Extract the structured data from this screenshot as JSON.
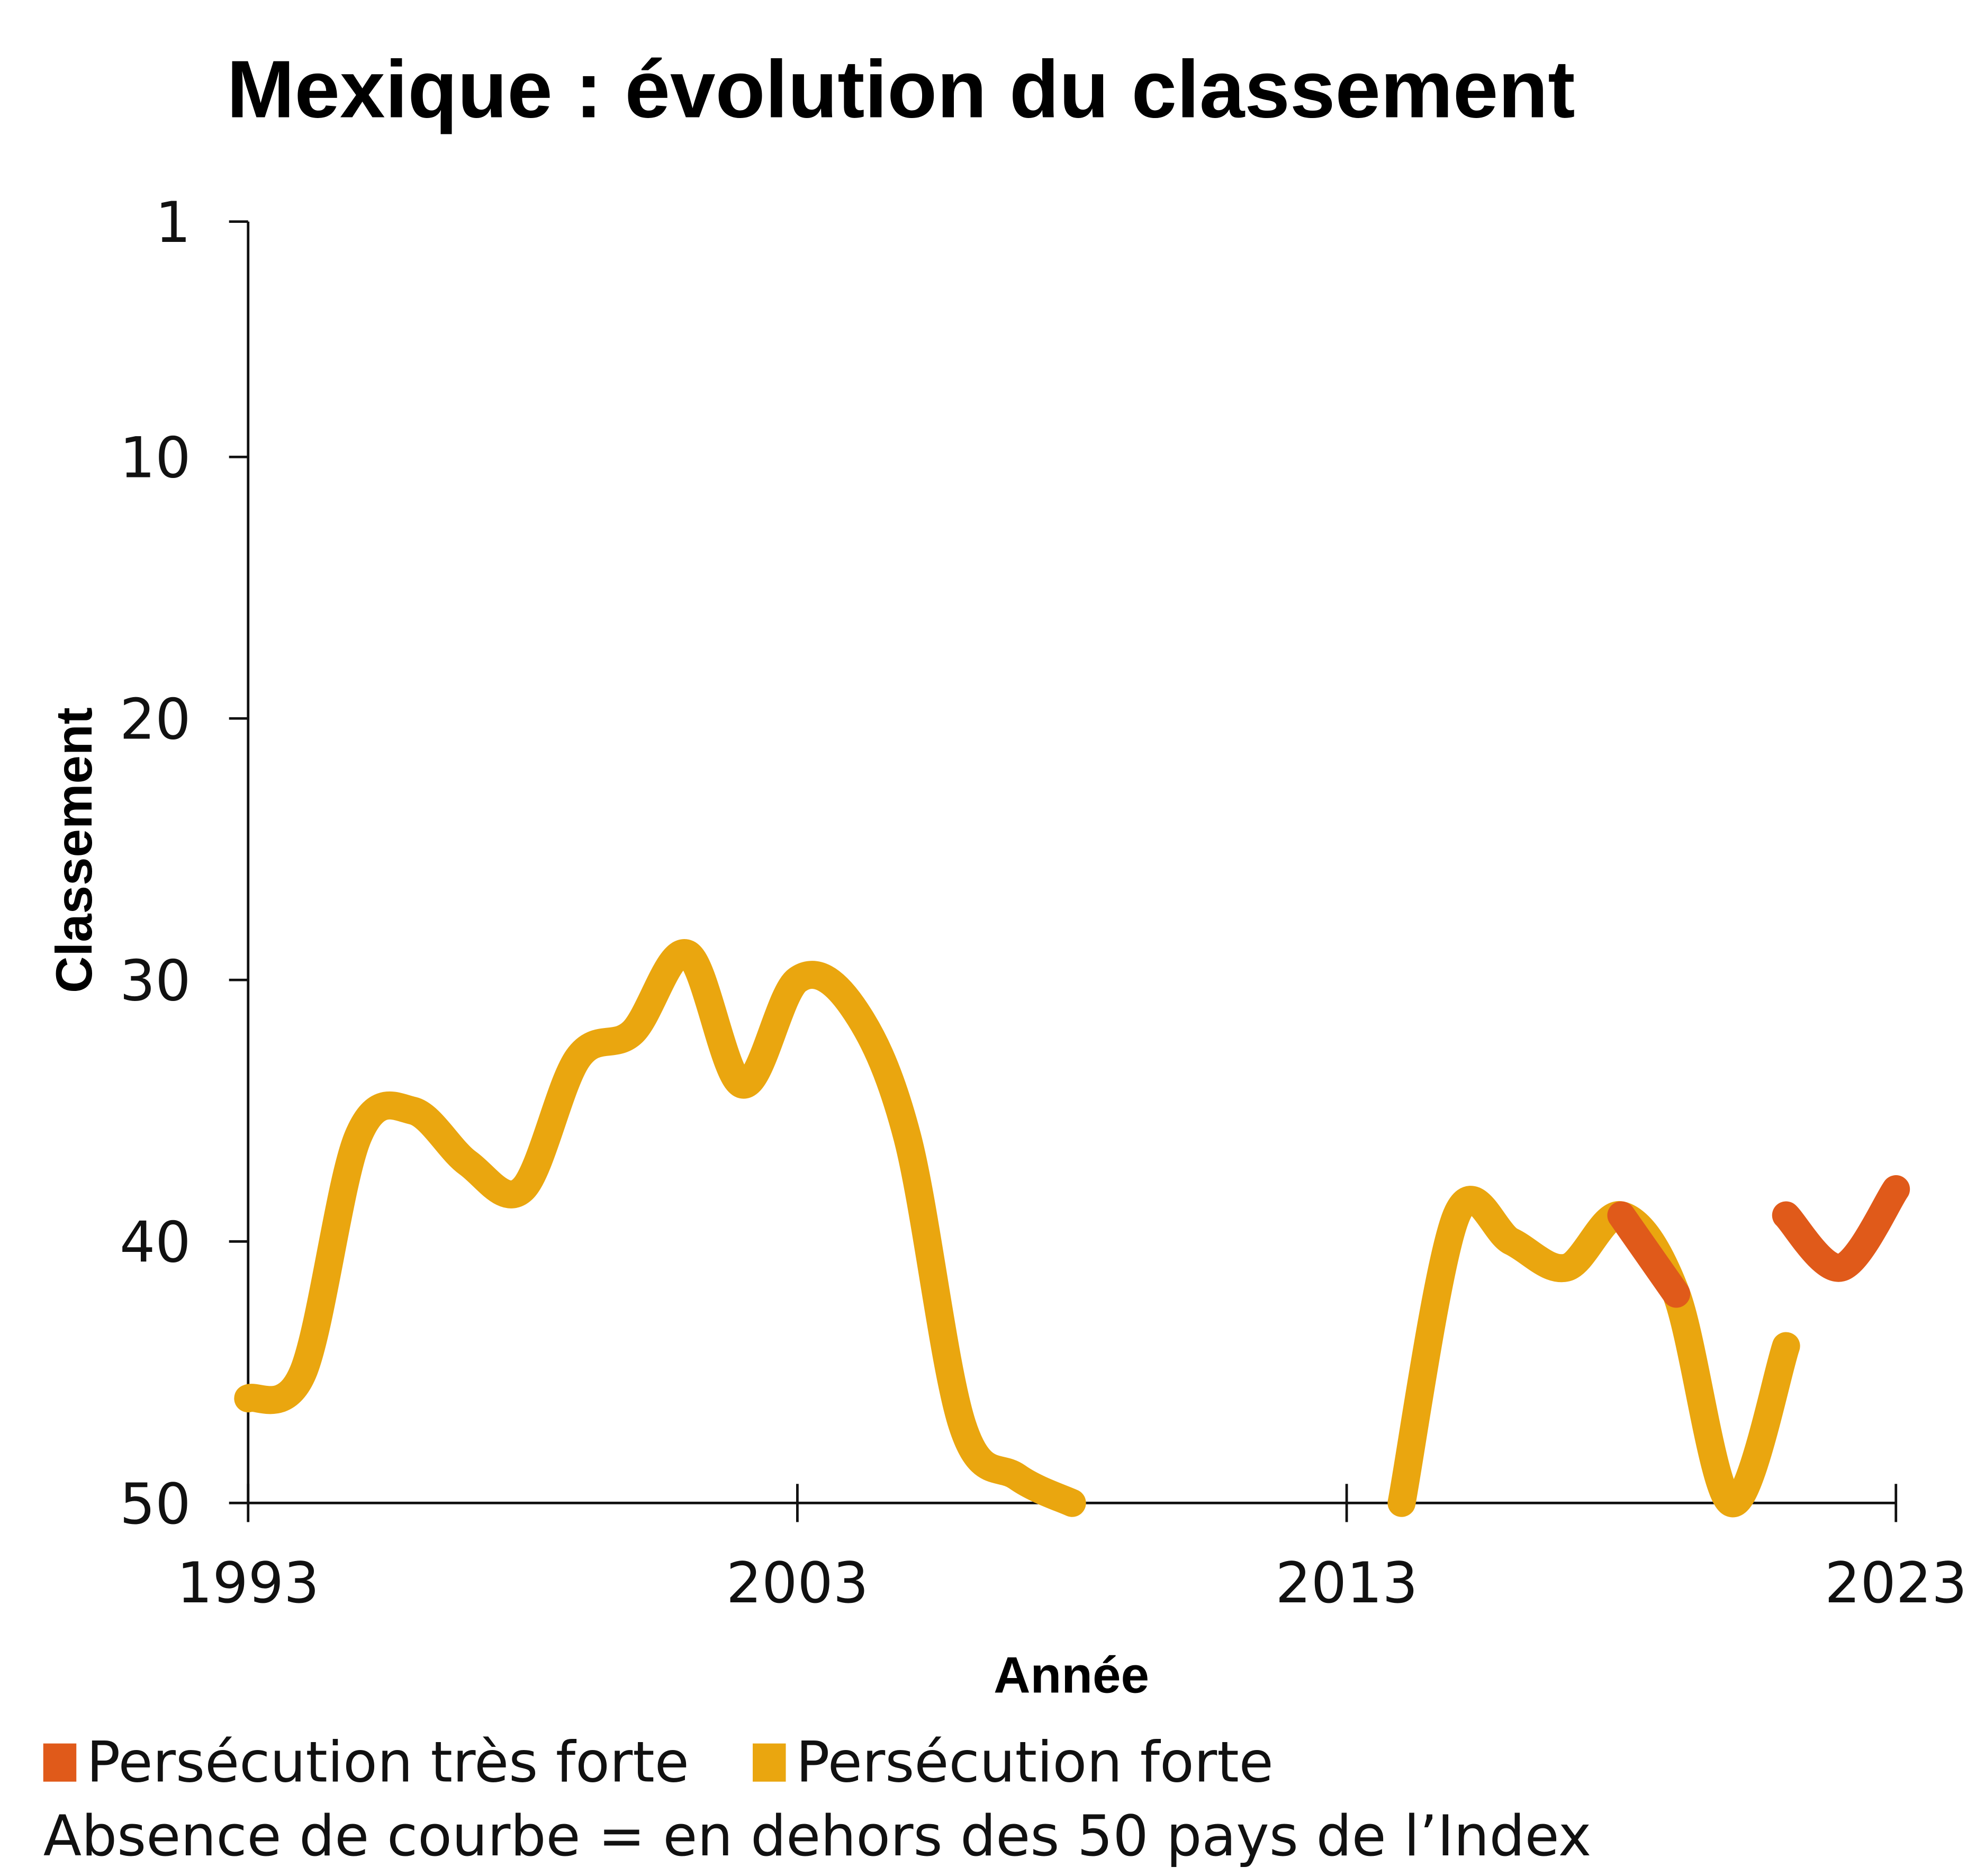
{
  "chart_data": {
    "type": "line",
    "title": "Mexique : évolution du classement",
    "x_label": "Année",
    "y_label": "Classement",
    "note": "Absence de courbe = en dehors des 50 pays de l’Index",
    "x": [
      1993,
      1994,
      1995,
      1996,
      1997,
      1998,
      1999,
      2000,
      2001,
      2002,
      2003,
      2004,
      2005,
      2006,
      2007,
      2008,
      2009,
      2010,
      2011,
      2012,
      2013,
      2014,
      2015,
      2016,
      2017,
      2018,
      2019,
      2020,
      2021,
      2022,
      2023
    ],
    "series": [
      {
        "name": "Persécution très forte",
        "color": "#e05a1a",
        "values": [
          null,
          null,
          null,
          null,
          null,
          null,
          null,
          null,
          null,
          null,
          null,
          null,
          null,
          null,
          null,
          null,
          null,
          null,
          null,
          null,
          null,
          null,
          null,
          null,
          null,
          39,
          42,
          null,
          39,
          41,
          38
        ]
      },
      {
        "name": "Persécution forte",
        "color": "#eaa60f",
        "values": [
          46,
          45,
          36,
          35,
          37,
          38,
          33,
          32,
          29,
          34,
          30,
          31,
          36,
          47,
          49,
          50,
          null,
          null,
          null,
          null,
          null,
          50,
          39,
          40,
          41,
          39,
          42,
          50,
          44,
          null,
          null
        ]
      }
    ],
    "xlim": [
      1993,
      2023
    ],
    "xticks": [
      1993,
      2003,
      2013,
      2023
    ],
    "ylim": [
      50,
      1
    ],
    "yticks": [
      1,
      10,
      20,
      30,
      40,
      50
    ]
  }
}
